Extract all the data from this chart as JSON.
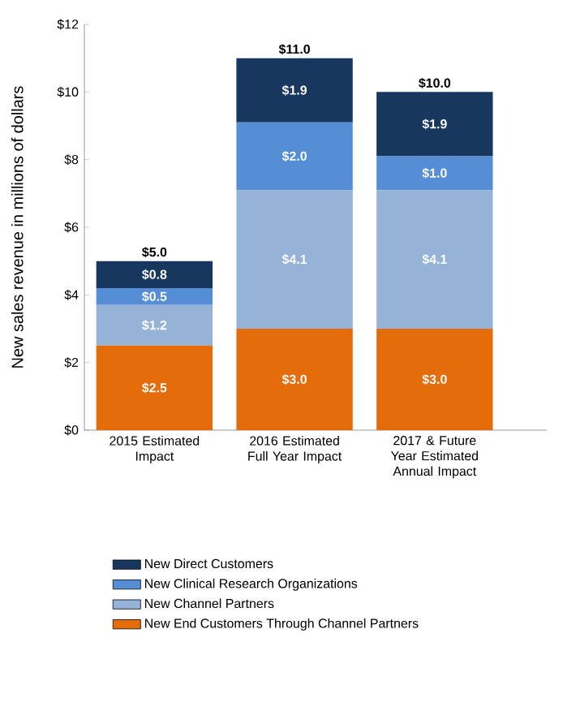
{
  "chart_data": {
    "type": "bar",
    "stacked": true,
    "ylabel": "New sales revenue in millions of dollars",
    "categories": [
      "2015 Estimated Impact",
      "2016 Estimated Full Year Impact",
      "2017 & Future Year Estimated Annual Impact"
    ],
    "ylim": [
      0,
      12
    ],
    "yticks": [
      {
        "value": 0,
        "label": "$0"
      },
      {
        "value": 2,
        "label": "$2"
      },
      {
        "value": 4,
        "label": "$4"
      },
      {
        "value": 6,
        "label": "$6"
      },
      {
        "value": 8,
        "label": "$8"
      },
      {
        "value": 10,
        "label": "$10"
      },
      {
        "value": 12,
        "label": "$12"
      }
    ],
    "legend": "bottom",
    "totals": [
      "$5.0",
      "$11.0",
      "$10.0"
    ],
    "series": [
      {
        "name": "New End Customers Through Channel Partners",
        "color": "#e46c0a",
        "values": [
          2.5,
          3.0,
          3.0
        ],
        "value_labels": [
          "$2.5",
          "$3.0",
          "$3.0"
        ]
      },
      {
        "name": "New Channel Partners",
        "color": "#95b3d7",
        "values": [
          1.2,
          4.1,
          4.1
        ],
        "value_labels": [
          "$1.2",
          "$4.1",
          "$4.1"
        ]
      },
      {
        "name": "New Clinical Research Organizations",
        "color": "#558ed5",
        "values": [
          0.5,
          2.0,
          1.0
        ],
        "value_labels": [
          "$0.5",
          "$2.0",
          "$1.0"
        ]
      },
      {
        "name": "New Direct Customers",
        "color": "#17375e",
        "values": [
          0.8,
          1.9,
          1.9
        ],
        "value_labels": [
          "$0.8",
          "$1.9",
          "$1.9"
        ]
      }
    ]
  }
}
